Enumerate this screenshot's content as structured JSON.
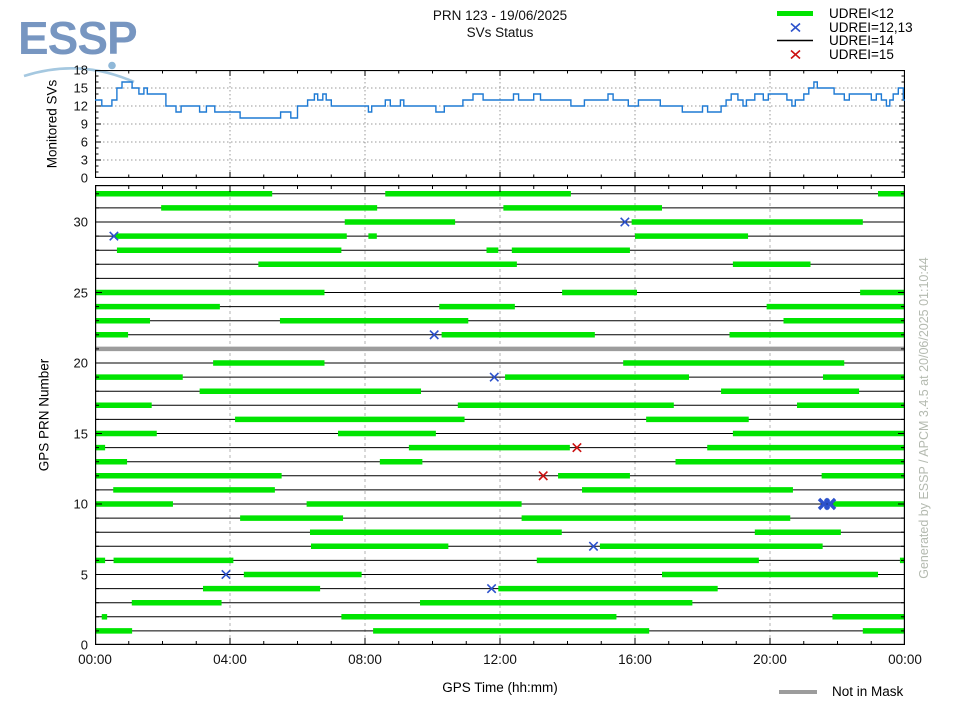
{
  "logo": {
    "text": "ESSP"
  },
  "header": {
    "title_line1": "PRN 123 - 19/06/2025",
    "title_line2": "SVs Status"
  },
  "legend_top": [
    {
      "label": "UDREI<12",
      "swatch": "green-line"
    },
    {
      "label": "UDREI=12,13",
      "swatch": "blue-x"
    },
    {
      "label": "UDREI=14",
      "swatch": "black-line"
    },
    {
      "label": "UDREI=15",
      "swatch": "red-x"
    }
  ],
  "legend_bottom": {
    "label": "Not in Mask",
    "swatch": "gray-line"
  },
  "watermark": {
    "text": "Generated by ESSP / APCM 3.4.5 at 20/06/2025 01:10:44"
  },
  "colors": {
    "green": "#00e400",
    "line_blue": "#1e7ad4",
    "marker_blue": "#2d52cc",
    "marker_red": "#cc1111",
    "gray": "#9c9c9c",
    "grid": "#999999",
    "logo_blue": "#7796c1"
  },
  "chart_data": [
    {
      "type": "line",
      "title": "Monitored SVs over GPS time",
      "ylabel": "Monitored SVs",
      "ylim": [
        0,
        18
      ],
      "yticks": [
        0,
        3,
        6,
        9,
        12,
        15,
        18
      ],
      "ytick_labels": [
        "0",
        "3",
        "6",
        "9",
        "12",
        "15",
        "18"
      ],
      "ygrid": [
        3,
        6,
        9,
        12,
        15
      ],
      "xlim": [
        0,
        24
      ],
      "xgrid": [
        4,
        8,
        12,
        16,
        20
      ],
      "grid": "dotted",
      "step_points": [
        [
          0,
          13
        ],
        [
          0.2,
          12
        ],
        [
          0.5,
          13
        ],
        [
          0.65,
          15
        ],
        [
          0.8,
          16
        ],
        [
          1.1,
          15
        ],
        [
          1.3,
          14
        ],
        [
          1.45,
          15
        ],
        [
          1.55,
          14
        ],
        [
          2.1,
          12
        ],
        [
          2.4,
          11
        ],
        [
          2.55,
          12
        ],
        [
          3.1,
          11
        ],
        [
          3.3,
          12
        ],
        [
          3.55,
          11
        ],
        [
          4.3,
          10
        ],
        [
          5.5,
          11
        ],
        [
          5.8,
          10
        ],
        [
          6.0,
          12
        ],
        [
          6.3,
          13
        ],
        [
          6.5,
          14
        ],
        [
          6.6,
          13
        ],
        [
          6.75,
          14
        ],
        [
          6.85,
          13
        ],
        [
          7.0,
          12
        ],
        [
          8.1,
          11
        ],
        [
          8.2,
          12
        ],
        [
          8.6,
          13
        ],
        [
          8.75,
          12
        ],
        [
          9.05,
          13
        ],
        [
          9.15,
          12
        ],
        [
          10.1,
          11
        ],
        [
          10.35,
          12
        ],
        [
          10.9,
          13
        ],
        [
          11.2,
          14
        ],
        [
          11.5,
          13
        ],
        [
          12.4,
          14
        ],
        [
          12.55,
          13
        ],
        [
          13.0,
          14
        ],
        [
          13.2,
          13
        ],
        [
          14.1,
          12
        ],
        [
          14.5,
          13
        ],
        [
          15.2,
          14
        ],
        [
          15.35,
          13
        ],
        [
          15.8,
          12
        ],
        [
          16.1,
          13
        ],
        [
          16.75,
          12
        ],
        [
          17.4,
          11
        ],
        [
          18.0,
          12
        ],
        [
          18.15,
          11
        ],
        [
          18.55,
          12
        ],
        [
          18.7,
          13
        ],
        [
          18.85,
          14
        ],
        [
          19.05,
          13
        ],
        [
          19.2,
          12
        ],
        [
          19.3,
          13
        ],
        [
          19.55,
          14
        ],
        [
          19.8,
          13
        ],
        [
          19.95,
          14
        ],
        [
          20.5,
          13
        ],
        [
          20.65,
          12
        ],
        [
          20.75,
          13
        ],
        [
          21.0,
          14
        ],
        [
          21.15,
          15
        ],
        [
          21.3,
          16
        ],
        [
          21.4,
          15
        ],
        [
          21.9,
          14
        ],
        [
          22.2,
          13
        ],
        [
          22.35,
          14
        ],
        [
          23.0,
          13
        ],
        [
          23.15,
          14
        ],
        [
          23.3,
          13
        ],
        [
          23.45,
          12
        ],
        [
          23.55,
          13
        ],
        [
          23.65,
          14
        ],
        [
          23.8,
          15
        ],
        [
          23.95,
          13
        ]
      ]
    },
    {
      "type": "status-timeline",
      "title": "GPS PRN status (UDREI) over GPS time",
      "ylabel": "GPS PRN Number",
      "xlabel": "GPS Time (hh:mm)",
      "ylim": [
        0,
        32.6
      ],
      "yticks": [
        0,
        5,
        10,
        15,
        20,
        25,
        30
      ],
      "ytick_labels": [
        "0",
        "5",
        "10",
        "15",
        "20",
        "25",
        "30"
      ],
      "xlim": [
        0,
        24
      ],
      "xticks": [
        0,
        4,
        8,
        12,
        16,
        20,
        24
      ],
      "xtick_labels": [
        "00:00",
        "04:00",
        "08:00",
        "12:00",
        "16:00",
        "20:00",
        "00:00"
      ],
      "xgrid": [
        4,
        8,
        12,
        16,
        20
      ],
      "grid": "dashed-vertical",
      "segment_meaning": "UDREI<12 (green); thin black line = UDREI=14; blue x = UDREI=12,13; red x = UDREI=15; gray = Not in Mask",
      "rows": [
        {
          "prn": 32,
          "segments": [
            [
              0,
              5.25
            ],
            [
              8.6,
              14.1
            ],
            [
              23.2,
              24
            ]
          ],
          "markers": []
        },
        {
          "prn": 31,
          "segments": [
            [
              1.96,
              8.36
            ],
            [
              12.1,
              16.8
            ]
          ],
          "markers": []
        },
        {
          "prn": 30,
          "segments": [
            [
              7.4,
              10.67
            ],
            [
              15.9,
              22.75
            ]
          ],
          "markers": [
            {
              "t": 15.7,
              "c": "blue"
            }
          ]
        },
        {
          "prn": 29,
          "segments": [
            [
              0.6,
              7.46
            ],
            [
              8.1,
              8.35
            ],
            [
              16.0,
              19.35
            ]
          ],
          "markers": [
            {
              "t": 0.56,
              "c": "blue"
            }
          ]
        },
        {
          "prn": 28,
          "segments": [
            [
              0.65,
              7.3
            ],
            [
              11.6,
              11.95
            ],
            [
              12.35,
              15.85
            ]
          ],
          "markers": []
        },
        {
          "prn": 27,
          "segments": [
            [
              4.84,
              12.5
            ],
            [
              18.9,
              21.2
            ]
          ],
          "markers": []
        },
        {
          "prn": 26,
          "segments": [],
          "markers": []
        },
        {
          "prn": 25,
          "segments": [
            [
              0,
              6.8
            ],
            [
              13.84,
              16.06
            ],
            [
              22.67,
              24
            ]
          ],
          "markers": []
        },
        {
          "prn": 24,
          "segments": [
            [
              0,
              3.7
            ],
            [
              10.2,
              12.44
            ],
            [
              19.9,
              24
            ]
          ],
          "markers": []
        },
        {
          "prn": 23,
          "segments": [
            [
              0,
              1.63
            ],
            [
              5.48,
              11.06
            ],
            [
              20.4,
              24
            ]
          ],
          "markers": []
        },
        {
          "prn": 22,
          "segments": [
            [
              0,
              0.98
            ],
            [
              10.27,
              14.81
            ],
            [
              18.8,
              24
            ]
          ],
          "markers": [
            {
              "t": 10.05,
              "c": "blue"
            }
          ]
        },
        {
          "prn": 21,
          "not_in_mask": true,
          "segments": [],
          "markers": []
        },
        {
          "prn": 20,
          "segments": [
            [
              3.5,
              6.8
            ],
            [
              15.65,
              22.2
            ]
          ],
          "markers": []
        },
        {
          "prn": 19,
          "segments": [
            [
              0,
              2.6
            ],
            [
              12.15,
              17.6
            ],
            [
              21.57,
              24
            ]
          ],
          "markers": [
            {
              "t": 11.83,
              "c": "blue"
            }
          ]
        },
        {
          "prn": 18,
          "segments": [
            [
              3.1,
              9.66
            ],
            [
              18.55,
              22.64
            ]
          ],
          "markers": []
        },
        {
          "prn": 17,
          "segments": [
            [
              0,
              1.68
            ],
            [
              10.75,
              17.15
            ],
            [
              20.8,
              24
            ]
          ],
          "markers": []
        },
        {
          "prn": 16,
          "segments": [
            [
              4.15,
              10.95
            ],
            [
              16.33,
              19.37
            ]
          ],
          "markers": []
        },
        {
          "prn": 15,
          "segments": [
            [
              0,
              1.83
            ],
            [
              7.2,
              10.1
            ],
            [
              18.9,
              24
            ]
          ],
          "markers": []
        },
        {
          "prn": 14,
          "segments": [
            [
              0,
              0.3
            ],
            [
              9.3,
              14.07
            ],
            [
              18.14,
              24
            ]
          ],
          "markers": [
            {
              "t": 14.28,
              "c": "red"
            }
          ]
        },
        {
          "prn": 13,
          "segments": [
            [
              0,
              0.95
            ],
            [
              8.44,
              9.7
            ],
            [
              17.2,
              24
            ]
          ],
          "markers": []
        },
        {
          "prn": 12,
          "segments": [
            [
              0,
              5.53
            ],
            [
              13.72,
              15.85
            ],
            [
              21.53,
              24
            ]
          ],
          "markers": [
            {
              "t": 13.28,
              "c": "red"
            }
          ]
        },
        {
          "prn": 11,
          "segments": [
            [
              0.54,
              5.33
            ],
            [
              14.43,
              20.68
            ]
          ],
          "markers": []
        },
        {
          "prn": 10,
          "segments": [
            [
              0,
              2.31
            ],
            [
              6.27,
              12.64
            ],
            [
              21.87,
              24
            ]
          ],
          "markers": [
            {
              "t": 21.6,
              "c": "blue-bold"
            },
            {
              "t": 21.78,
              "c": "blue-bold"
            }
          ]
        },
        {
          "prn": 9,
          "segments": [
            [
              4.3,
              7.35
            ],
            [
              12.64,
              20.6
            ]
          ],
          "markers": []
        },
        {
          "prn": 8,
          "segments": [
            [
              6.37,
              13.83
            ],
            [
              19.55,
              22.1
            ]
          ],
          "markers": []
        },
        {
          "prn": 7,
          "segments": [
            [
              6.4,
              10.47
            ],
            [
              14.96,
              21.56
            ]
          ],
          "markers": [
            {
              "t": 14.77,
              "c": "blue"
            }
          ]
        },
        {
          "prn": 6,
          "segments": [
            [
              0,
              0.3
            ],
            [
              0.55,
              4.1
            ],
            [
              13.09,
              19.67
            ],
            [
              23.85,
              24
            ]
          ],
          "markers": []
        },
        {
          "prn": 5,
          "segments": [
            [
              4.41,
              7.9
            ],
            [
              16.8,
              23.2
            ]
          ],
          "markers": [
            {
              "t": 3.88,
              "c": "blue"
            }
          ]
        },
        {
          "prn": 4,
          "segments": [
            [
              3.2,
              6.67
            ],
            [
              11.95,
              18.45
            ]
          ],
          "markers": [
            {
              "t": 11.75,
              "c": "blue"
            }
          ]
        },
        {
          "prn": 3,
          "segments": [
            [
              1.09,
              3.75
            ],
            [
              9.63,
              17.7
            ]
          ],
          "markers": []
        },
        {
          "prn": 2,
          "segments": [
            [
              0.2,
              0.36
            ],
            [
              7.3,
              15.45
            ],
            [
              21.85,
              24
            ]
          ],
          "markers": []
        },
        {
          "prn": 1,
          "segments": [
            [
              0,
              1.1
            ],
            [
              8.24,
              16.42
            ],
            [
              22.75,
              24
            ]
          ],
          "markers": []
        }
      ]
    }
  ]
}
